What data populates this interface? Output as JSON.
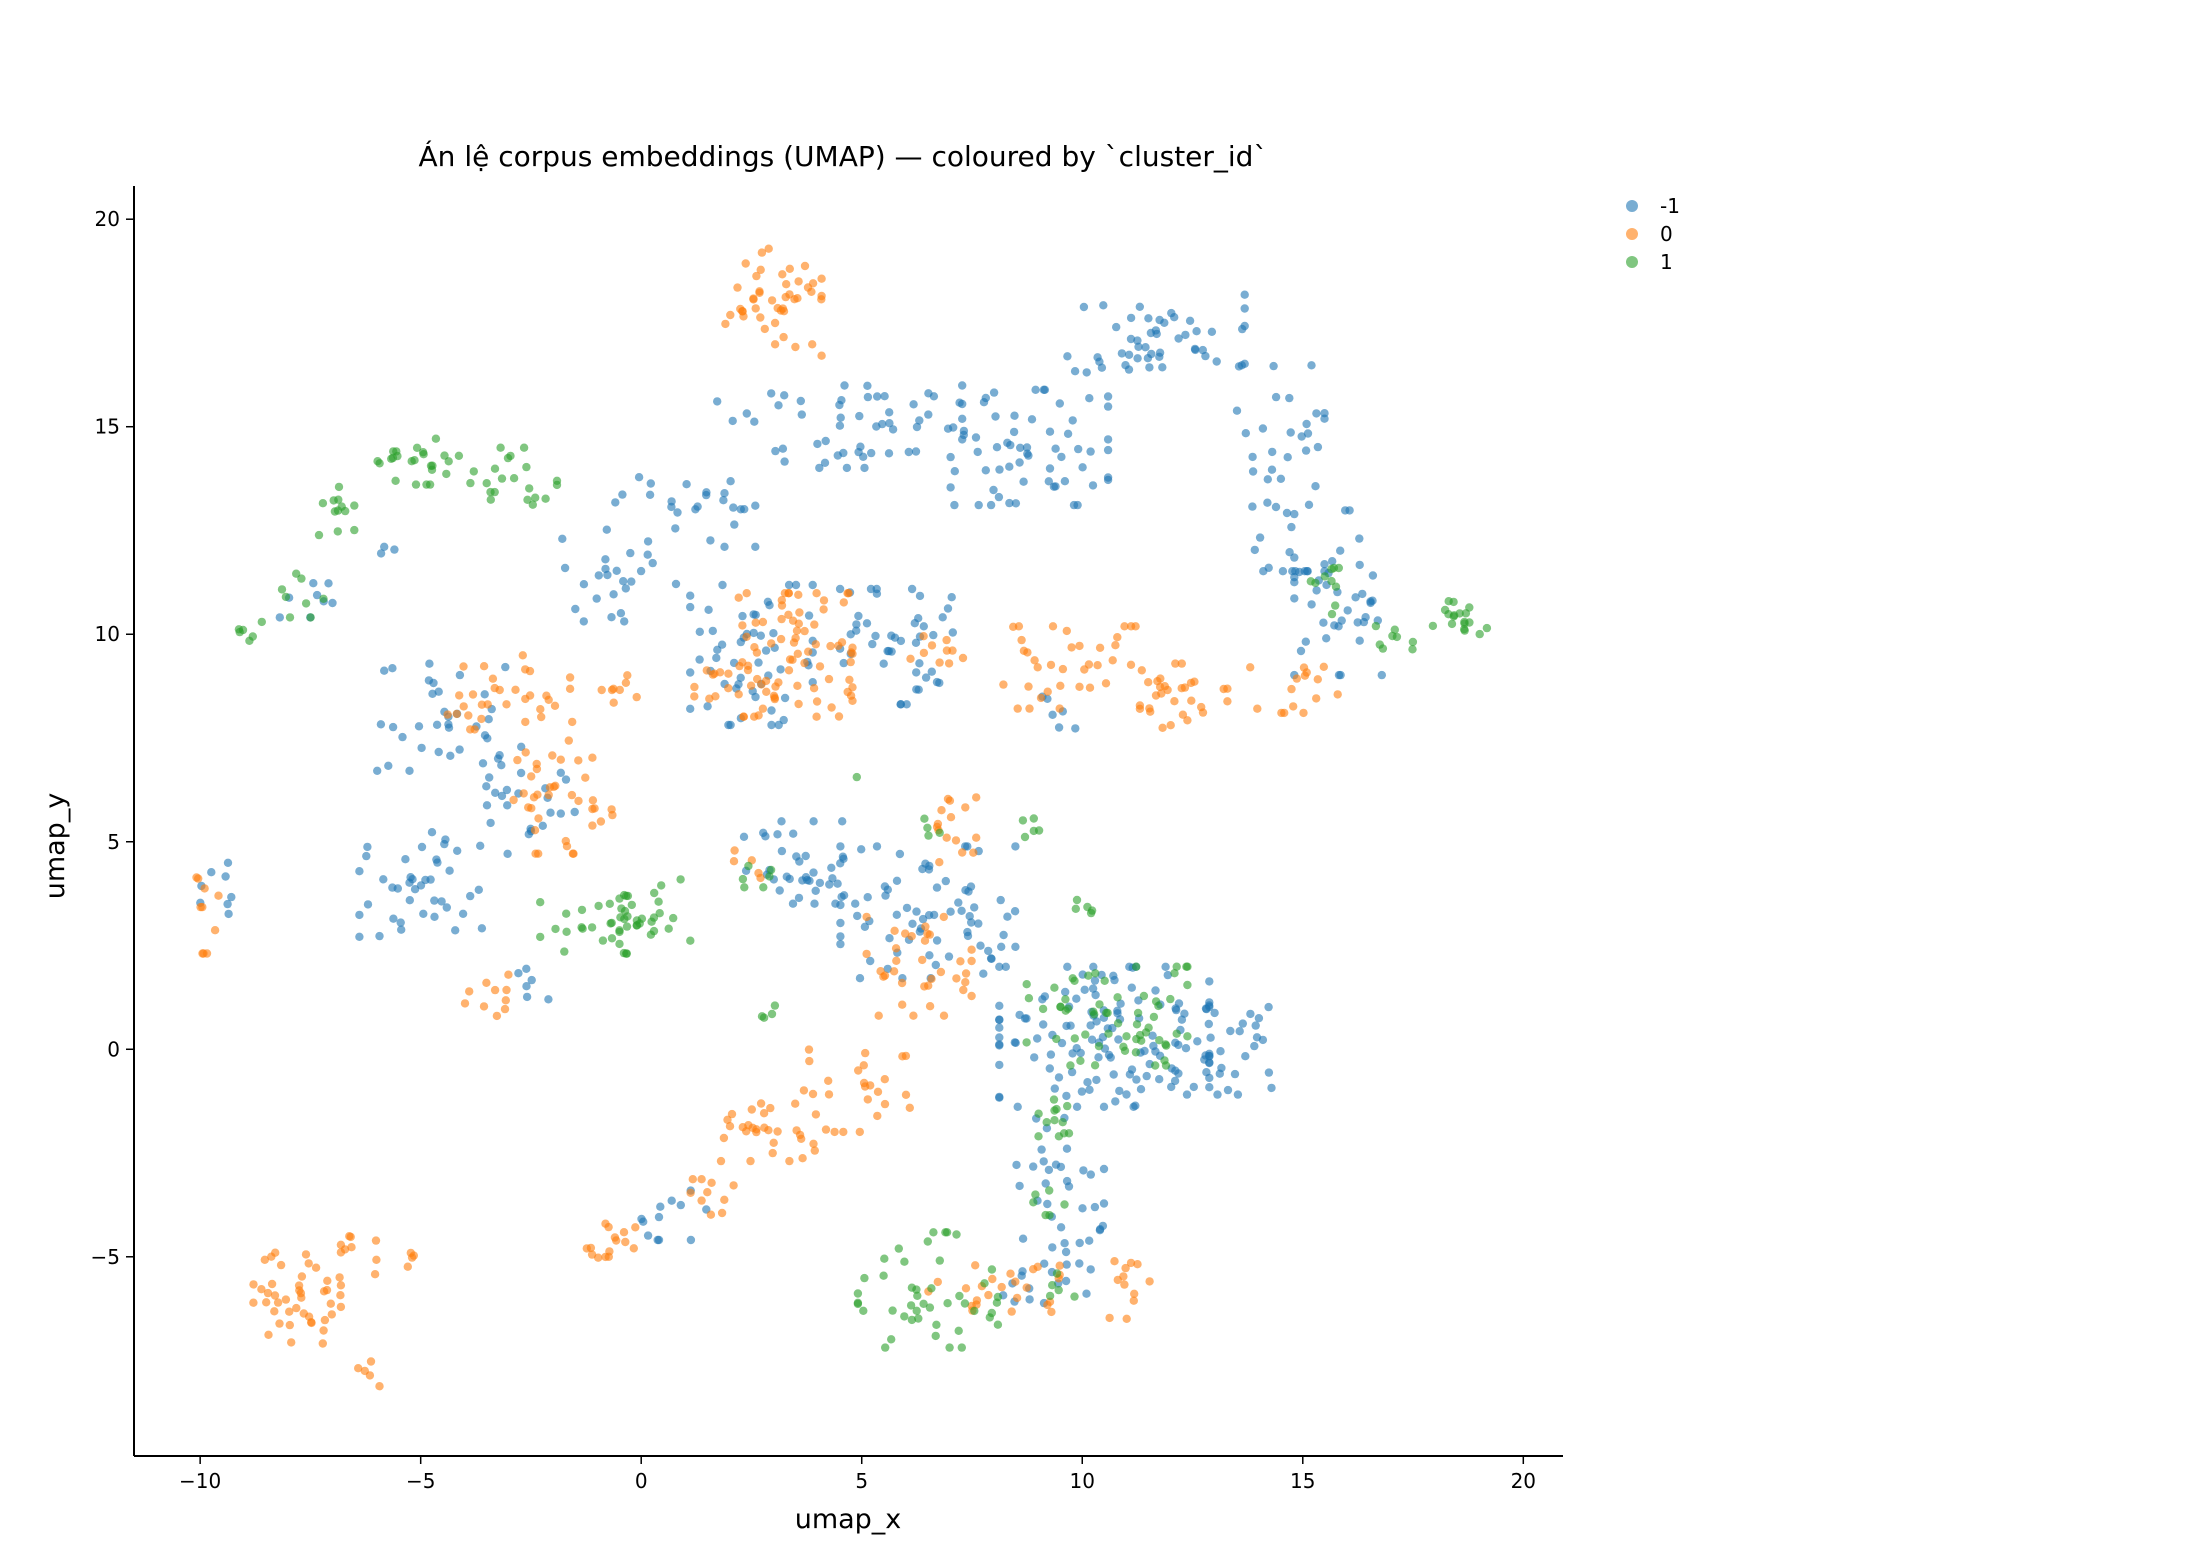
{
  "chart_data": {
    "type": "scatter",
    "title": "Án lệ corpus embeddings (UMAP) — coloured by `cluster_id`",
    "xlabel": "umap_x",
    "ylabel": "umap_y",
    "xlim": [
      -11.5,
      20.9
    ],
    "ylim": [
      -9.8,
      20.8
    ],
    "x_ticks": [
      -10,
      -5,
      0,
      5,
      10,
      15,
      20
    ],
    "y_ticks": [
      -5,
      0,
      5,
      10,
      15,
      20
    ],
    "grid": false,
    "legend_placement": "outside-top-right",
    "series": [
      {
        "name": "-1",
        "color": "#1f77b4",
        "clusters": [
          {
            "cx": 1.0,
            "cy": 13.0,
            "rx": 1.6,
            "ry": 0.9,
            "n": 25
          },
          {
            "cx": -0.5,
            "cy": 11.5,
            "rx": 1.3,
            "ry": 1.2,
            "n": 25
          },
          {
            "cx": 4.5,
            "cy": 15.0,
            "rx": 2.8,
            "ry": 1.0,
            "n": 55
          },
          {
            "cx": 8.8,
            "cy": 14.5,
            "rx": 1.8,
            "ry": 1.4,
            "n": 60
          },
          {
            "cx": 11.5,
            "cy": 17.3,
            "rx": 2.2,
            "ry": 1.0,
            "n": 50
          },
          {
            "cx": 14.5,
            "cy": 14.0,
            "rx": 1.0,
            "ry": 2.5,
            "n": 45
          },
          {
            "cx": 15.8,
            "cy": 11.0,
            "rx": 1.0,
            "ry": 2.0,
            "n": 40
          },
          {
            "cx": 2.5,
            "cy": 9.5,
            "rx": 1.4,
            "ry": 1.7,
            "n": 55
          },
          {
            "cx": 5.8,
            "cy": 9.7,
            "rx": 1.3,
            "ry": 1.4,
            "n": 45
          },
          {
            "cx": -4.3,
            "cy": 8.0,
            "rx": 1.7,
            "ry": 1.3,
            "n": 35
          },
          {
            "cx": -5.0,
            "cy": 4.0,
            "rx": 1.4,
            "ry": 1.3,
            "n": 40
          },
          {
            "cx": -2.6,
            "cy": 5.8,
            "rx": 1.1,
            "ry": 1.1,
            "n": 25
          },
          {
            "cx": 3.6,
            "cy": 4.5,
            "rx": 1.4,
            "ry": 1.0,
            "n": 40
          },
          {
            "cx": 6.5,
            "cy": 3.3,
            "rx": 2.0,
            "ry": 1.6,
            "n": 70
          },
          {
            "cx": 10.5,
            "cy": 0.3,
            "rx": 2.4,
            "ry": 1.7,
            "n": 130
          },
          {
            "cx": 13.2,
            "cy": 0.0,
            "rx": 1.1,
            "ry": 1.1,
            "n": 30
          },
          {
            "cx": 9.5,
            "cy": -3.6,
            "rx": 1.0,
            "ry": 2.0,
            "n": 40
          },
          {
            "cx": 9.2,
            "cy": -5.8,
            "rx": 1.0,
            "ry": 0.5,
            "n": 10
          },
          {
            "cx": 0.8,
            "cy": -4.0,
            "rx": 0.8,
            "ry": 0.6,
            "n": 12
          },
          {
            "cx": -9.6,
            "cy": 3.5,
            "rx": 0.4,
            "ry": 1.0,
            "n": 8
          },
          {
            "cx": -7.5,
            "cy": 11.0,
            "rx": 0.7,
            "ry": 0.6,
            "n": 8
          },
          {
            "cx": -5.6,
            "cy": 12.0,
            "rx": 0.3,
            "ry": 0.2,
            "n": 3
          },
          {
            "cx": -2.6,
            "cy": 1.6,
            "rx": 0.5,
            "ry": 0.4,
            "n": 6
          },
          {
            "cx": 9.5,
            "cy": 8.0,
            "rx": 0.6,
            "ry": 0.5,
            "n": 6
          }
        ]
      },
      {
        "name": "0",
        "color": "#ff7f0e",
        "clusters": [
          {
            "cx": 3.0,
            "cy": 18.0,
            "rx": 1.1,
            "ry": 1.3,
            "n": 45
          },
          {
            "cx": 3.5,
            "cy": 9.5,
            "rx": 1.3,
            "ry": 1.5,
            "n": 80
          },
          {
            "cx": 1.7,
            "cy": 8.8,
            "rx": 0.5,
            "ry": 0.5,
            "n": 10
          },
          {
            "cx": 6.7,
            "cy": 9.6,
            "rx": 0.6,
            "ry": 0.5,
            "n": 10
          },
          {
            "cx": 9.8,
            "cy": 9.2,
            "rx": 1.6,
            "ry": 1.0,
            "n": 35
          },
          {
            "cx": 12.3,
            "cy": 8.5,
            "rx": 1.0,
            "ry": 0.8,
            "n": 30
          },
          {
            "cx": 14.8,
            "cy": 8.7,
            "rx": 1.0,
            "ry": 0.6,
            "n": 15
          },
          {
            "cx": -3.0,
            "cy": 8.6,
            "rx": 1.4,
            "ry": 0.9,
            "n": 30
          },
          {
            "cx": -2.0,
            "cy": 6.3,
            "rx": 0.9,
            "ry": 1.6,
            "n": 35
          },
          {
            "cx": -0.5,
            "cy": 8.7,
            "rx": 0.4,
            "ry": 0.4,
            "n": 8
          },
          {
            "cx": -0.9,
            "cy": 5.7,
            "rx": 0.3,
            "ry": 0.3,
            "n": 5
          },
          {
            "cx": -9.8,
            "cy": 3.3,
            "rx": 0.3,
            "ry": 1.0,
            "n": 10
          },
          {
            "cx": -3.3,
            "cy": 1.3,
            "rx": 0.7,
            "ry": 0.5,
            "n": 10
          },
          {
            "cx": 6.3,
            "cy": 2.0,
            "rx": 1.2,
            "ry": 1.2,
            "n": 35
          },
          {
            "cx": 7.0,
            "cy": 5.3,
            "rx": 0.6,
            "ry": 0.8,
            "n": 15
          },
          {
            "cx": 4.8,
            "cy": -1.0,
            "rx": 1.3,
            "ry": 1.0,
            "n": 25
          },
          {
            "cx": 3.0,
            "cy": -2.0,
            "rx": 1.2,
            "ry": 0.7,
            "n": 30
          },
          {
            "cx": 1.5,
            "cy": -3.5,
            "rx": 0.6,
            "ry": 0.6,
            "n": 10
          },
          {
            "cx": -0.8,
            "cy": -4.7,
            "rx": 0.8,
            "ry": 0.5,
            "n": 15
          },
          {
            "cx": -7.8,
            "cy": -5.8,
            "rx": 1.0,
            "ry": 1.3,
            "n": 45
          },
          {
            "cx": -6.5,
            "cy": -5.0,
            "rx": 0.5,
            "ry": 0.5,
            "n": 8
          },
          {
            "cx": -6.2,
            "cy": -7.8,
            "rx": 0.3,
            "ry": 0.4,
            "n": 5
          },
          {
            "cx": -5.3,
            "cy": -5.1,
            "rx": 0.2,
            "ry": 0.2,
            "n": 4
          },
          {
            "cx": 8.0,
            "cy": -5.8,
            "rx": 1.5,
            "ry": 0.6,
            "n": 25
          },
          {
            "cx": 11.0,
            "cy": -5.8,
            "rx": 0.6,
            "ry": 0.7,
            "n": 12
          },
          {
            "cx": 2.5,
            "cy": 4.5,
            "rx": 0.4,
            "ry": 0.4,
            "n": 5
          }
        ]
      },
      {
        "name": "1",
        "color": "#2ca02c",
        "clusters": [
          {
            "cx": -4.8,
            "cy": 14.2,
            "rx": 1.2,
            "ry": 0.6,
            "n": 25
          },
          {
            "cx": -3.0,
            "cy": 13.8,
            "rx": 1.1,
            "ry": 0.7,
            "n": 20
          },
          {
            "cx": -7.0,
            "cy": 12.8,
            "rx": 0.5,
            "ry": 0.8,
            "n": 12
          },
          {
            "cx": -7.7,
            "cy": 11.0,
            "rx": 0.5,
            "ry": 0.6,
            "n": 8
          },
          {
            "cx": -9.0,
            "cy": 10.0,
            "rx": 0.4,
            "ry": 0.3,
            "n": 6
          },
          {
            "cx": -1.0,
            "cy": 3.0,
            "rx": 1.3,
            "ry": 0.7,
            "n": 30
          },
          {
            "cx": 0.5,
            "cy": 3.3,
            "rx": 1.0,
            "ry": 0.8,
            "n": 20
          },
          {
            "cx": 2.7,
            "cy": 4.2,
            "rx": 0.4,
            "ry": 0.3,
            "n": 6
          },
          {
            "cx": 10.5,
            "cy": 0.8,
            "rx": 1.9,
            "ry": 1.2,
            "n": 60
          },
          {
            "cx": 9.5,
            "cy": -1.6,
            "rx": 0.7,
            "ry": 0.5,
            "n": 12
          },
          {
            "cx": 9.2,
            "cy": -3.9,
            "rx": 0.4,
            "ry": 0.5,
            "n": 6
          },
          {
            "cx": 6.5,
            "cy": -5.8,
            "rx": 1.6,
            "ry": 1.4,
            "n": 45
          },
          {
            "cx": 9.5,
            "cy": -5.7,
            "rx": 0.4,
            "ry": 0.3,
            "n": 5
          },
          {
            "cx": 10.0,
            "cy": 3.3,
            "rx": 0.4,
            "ry": 0.3,
            "n": 5
          },
          {
            "cx": 8.8,
            "cy": 5.3,
            "rx": 0.3,
            "ry": 0.3,
            "n": 5
          },
          {
            "cx": 15.5,
            "cy": 11.0,
            "rx": 0.4,
            "ry": 0.6,
            "n": 10
          },
          {
            "cx": 17.0,
            "cy": 9.8,
            "rx": 0.5,
            "ry": 0.4,
            "n": 8
          },
          {
            "cx": 18.6,
            "cy": 10.4,
            "rx": 0.7,
            "ry": 0.4,
            "n": 18
          },
          {
            "cx": 3.0,
            "cy": 0.8,
            "rx": 0.3,
            "ry": 0.3,
            "n": 4
          },
          {
            "cx": 6.5,
            "cy": 5.3,
            "rx": 0.3,
            "ry": 0.3,
            "n": 4
          },
          {
            "cx": 4.9,
            "cy": 6.5,
            "rx": 0.1,
            "ry": 0.1,
            "n": 1
          }
        ]
      }
    ]
  }
}
